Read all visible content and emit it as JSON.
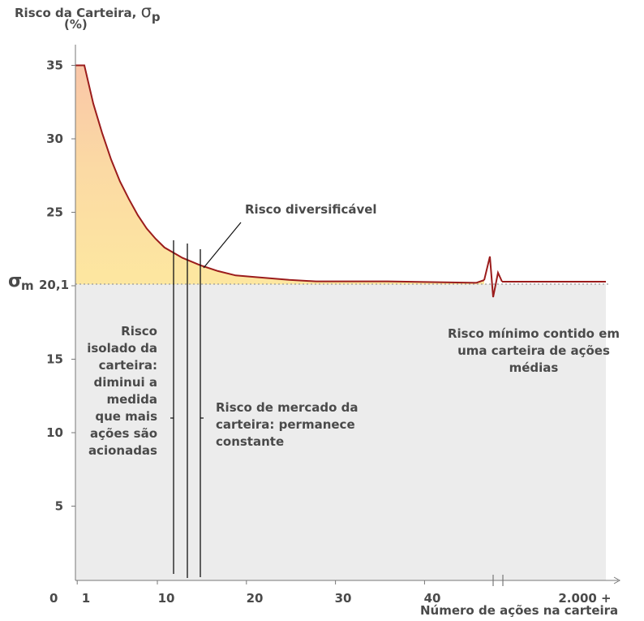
{
  "chart_data": {
    "type": "line",
    "ylabel": "Risco da Carteira,",
    "ylabel_symbol": "σ",
    "ylabel_symbol_sub": "p",
    "ylabel_unit": "(%)",
    "xlabel": "Número de ações na carteira",
    "x_ticks": [
      "1",
      "10",
      "20",
      "30",
      "40",
      "2.000 +"
    ],
    "y_ticks": [
      "5",
      "10",
      "15",
      "25",
      "30",
      "35"
    ],
    "origin_label": "0",
    "market_level": 20.1,
    "market_label": "20,1",
    "market_symbol": "σ",
    "market_symbol_sub": "m",
    "ylim": [
      0,
      35
    ],
    "xlim": [
      0,
      40
    ],
    "x_axis_break": true,
    "series": [
      {
        "x": [
          1,
          2,
          3,
          4,
          5,
          6,
          7,
          8,
          9,
          10,
          12,
          14,
          16,
          18,
          20,
          24,
          27,
          30,
          35,
          40,
          45,
          50
        ],
        "y": [
          35,
          32.4,
          30.4,
          28.6,
          27.1,
          25.9,
          24.8,
          23.9,
          23.2,
          22.6,
          21.9,
          21.4,
          21.0,
          20.7,
          20.6,
          20.4,
          20.3,
          20.3,
          20.3,
          20.25,
          20.2,
          20.2
        ]
      }
    ]
  },
  "annotations": {
    "diversifiable": "Risco diversificável",
    "isolated": [
      "Risco",
      "isolado da",
      "carteira:",
      "diminui a",
      "medida",
      "que mais",
      "ações são",
      "acionadas"
    ],
    "market": [
      "Risco de mercado da",
      "carteira: permanece",
      "constante"
    ],
    "minimum": [
      "Risco mínimo contido em",
      "uma carteira de ações",
      "médias"
    ]
  },
  "colors": {
    "curve": "#9b1c1c",
    "fill_top": "#fbd7b4",
    "fill_bottom": "#fde8a6",
    "gray_area": "#ececec",
    "axis": "#666666"
  }
}
